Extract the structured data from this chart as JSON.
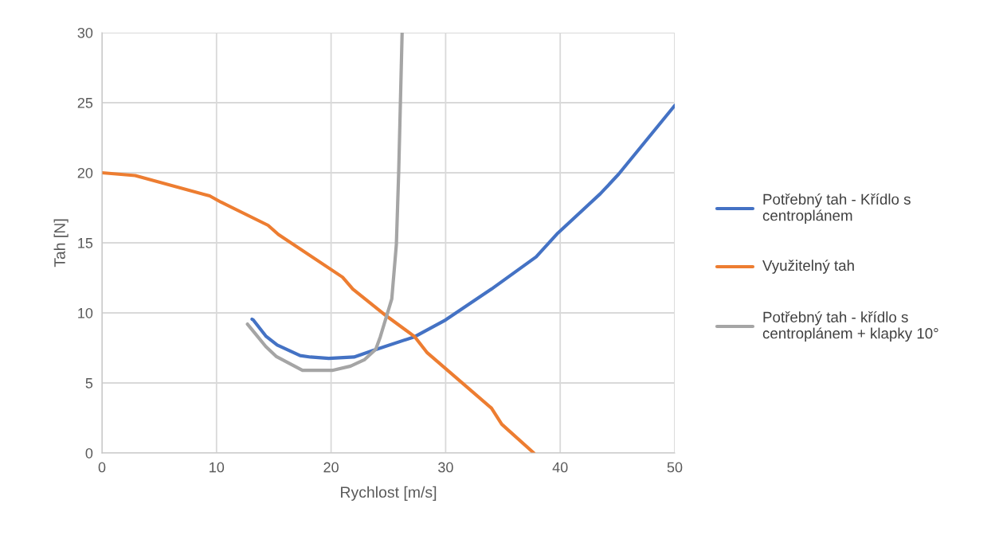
{
  "chart_data": {
    "type": "line",
    "xlabel": "Rychlost [m/s]",
    "ylabel": "Tah [N]",
    "xlim": [
      0,
      50
    ],
    "ylim": [
      0,
      30
    ],
    "xticks": [
      0,
      10,
      20,
      30,
      40,
      50
    ],
    "yticks": [
      0,
      5,
      10,
      15,
      20,
      25,
      30
    ],
    "grid": true,
    "legend": "right",
    "marker": "none",
    "line_style": "solid",
    "series": [
      {
        "name": "Potřebný tah - Křídlo s centroplánem",
        "color": "#4472c4",
        "x": [
          13.1,
          13.2,
          14.3,
          15.3,
          17.3,
          18.2,
          19.8,
          22.0,
          23.6,
          27.3,
          30.0,
          34.0,
          37.9,
          39.8,
          43.5,
          45.1,
          50
        ],
        "values": [
          9.55,
          9.5,
          8.35,
          7.7,
          6.95,
          6.85,
          6.75,
          6.85,
          7.3,
          8.3,
          9.5,
          11.7,
          14.0,
          15.7,
          18.5,
          19.9,
          24.8
        ]
      },
      {
        "name": "Využitelný tah",
        "color": "#ed7d31",
        "x": [
          0,
          2.9,
          9.4,
          10.4,
          14.5,
          15.4,
          21.0,
          21.9,
          24.8,
          27.3,
          28.4,
          34.0,
          34.9,
          37.7
        ],
        "values": [
          20.0,
          19.8,
          18.35,
          17.9,
          16.25,
          15.6,
          12.55,
          11.7,
          9.8,
          8.3,
          7.15,
          3.2,
          2.05,
          0
        ]
      },
      {
        "name": "Potřebný tah - křídlo s centroplánem + klapky 10°",
        "color": "#a5a5a5",
        "x": [
          12.7,
          13.6,
          14.3,
          15.2,
          17.5,
          20.1,
          21.7,
          22.9,
          23.9,
          24.3,
          25.3,
          25.7,
          25.9,
          26.2
        ],
        "values": [
          9.2,
          8.3,
          7.6,
          6.9,
          5.9,
          5.9,
          6.2,
          6.65,
          7.4,
          8.3,
          11.0,
          14.9,
          20.0,
          29.95
        ]
      }
    ]
  }
}
